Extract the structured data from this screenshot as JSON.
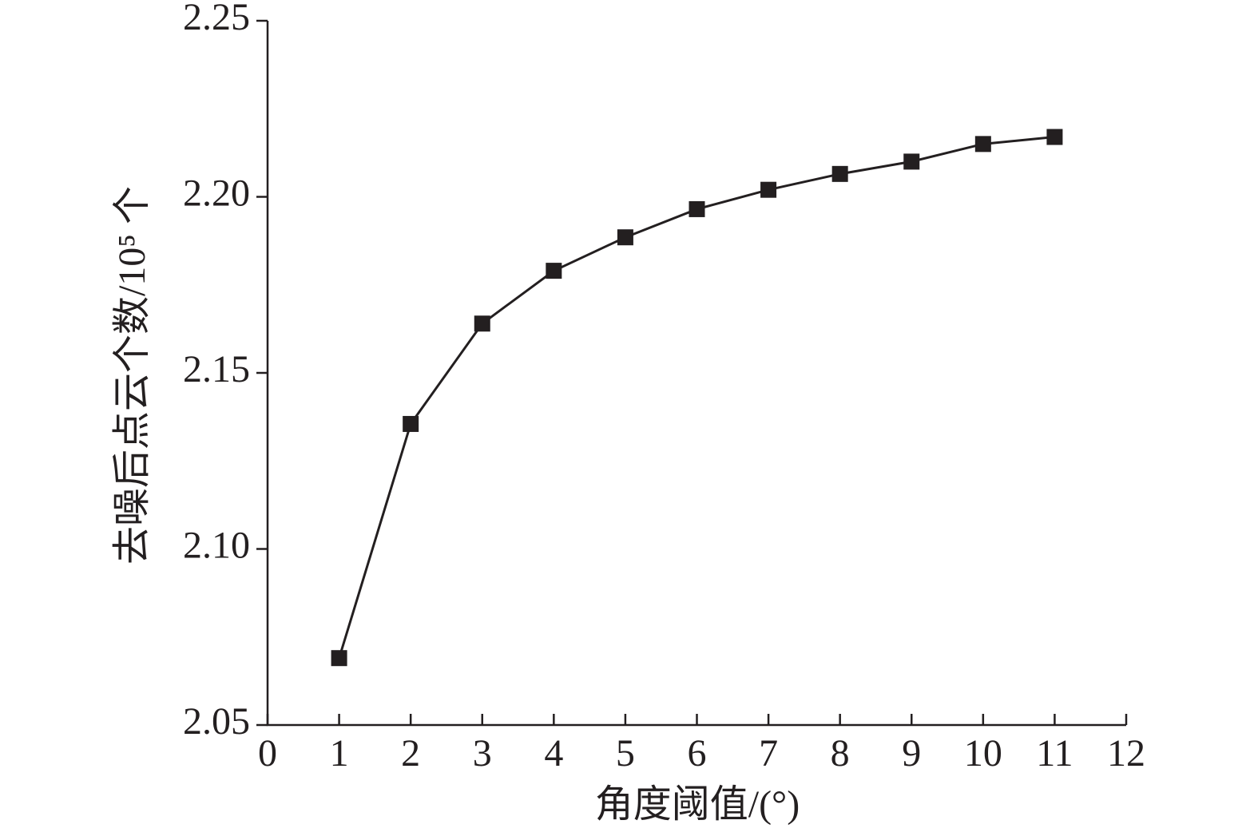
{
  "chart_data": {
    "type": "line",
    "x_label": "角度阈值/(°)",
    "y_label": "去噪后点云个数/10⁵ 个",
    "x": [
      1,
      2,
      3,
      4,
      5,
      6,
      7,
      8,
      9,
      10,
      11
    ],
    "series": [
      {
        "color": "#231f20",
        "values": [
          2.069,
          2.1355,
          2.164,
          2.179,
          2.1885,
          2.1965,
          2.202,
          2.2065,
          2.21,
          2.215,
          2.217
        ]
      }
    ],
    "xlim": [
      0,
      12
    ],
    "xticks": [
      0,
      1,
      2,
      3,
      4,
      5,
      6,
      7,
      8,
      9,
      10,
      11,
      12
    ],
    "ylim": [
      2.05,
      2.25
    ],
    "yticks": [
      2.05,
      {
        "value": 2.1,
        "label": "2.10"
      },
      2.15,
      {
        "value": 2.2,
        "label": "2.20"
      },
      2.25
    ],
    "grid": false
  }
}
